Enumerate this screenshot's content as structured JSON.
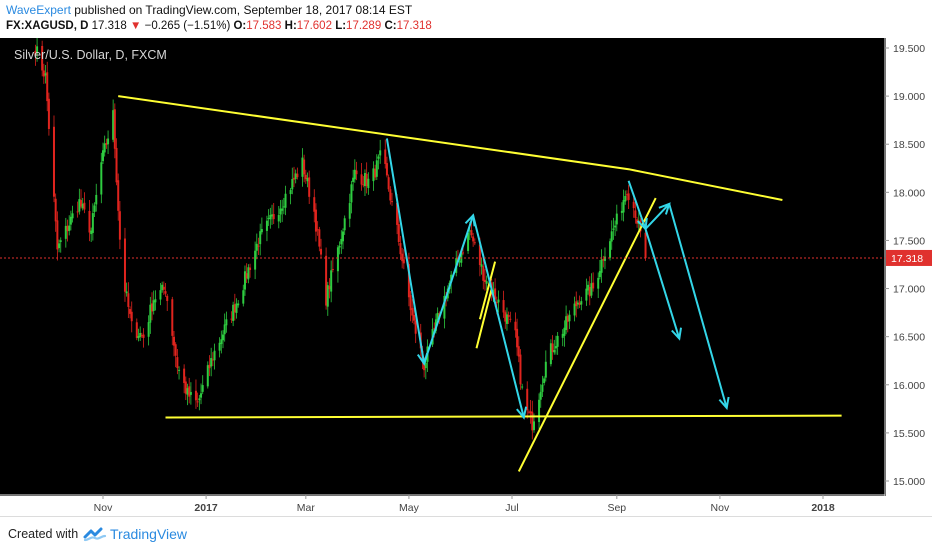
{
  "header": {
    "author": "WaveExpert",
    "published": " published on TradingView.com, September 18, 2017 08:14 EST",
    "symbol": "FX:XAGUSD, D",
    "price": "17.318",
    "change_arrow": "▼",
    "change": "−0.265 (−1.51%)",
    "o_label": "O:",
    "o": "17.583",
    "h_label": "H:",
    "h": "17.602",
    "l_label": "L:",
    "l": "17.289",
    "c_label": "C:",
    "c": "17.318"
  },
  "footer": {
    "created_with": "Created with",
    "brand": "TradingView"
  },
  "chart_data": {
    "type": "candlestick",
    "title": "Silver/U.S. Dollar, D, FXCM",
    "x_tick_labels": [
      "Nov",
      "2017",
      "Mar",
      "May",
      "Jul",
      "Sep",
      "Nov",
      "2018"
    ],
    "y_tick_labels": [
      "15.000",
      "15.500",
      "16.000",
      "16.500",
      "17.000",
      "17.500",
      "18.000",
      "18.500",
      "19.000",
      "19.500"
    ],
    "ylim": [
      14.85,
      19.6
    ],
    "last_price": 17.318,
    "last_price_label": "17.318",
    "colors": {
      "up": "#2ecc40",
      "down": "#e0241e",
      "trendline": "#ffff33",
      "projection": "#33d6e8",
      "last_price": "#e0312e",
      "background": "#000000"
    },
    "price_path": [
      [
        "2016-09-22",
        19.5
      ],
      [
        "2016-09-28",
        19.2
      ],
      [
        "2016-10-05",
        17.4
      ],
      [
        "2016-10-10",
        17.6
      ],
      [
        "2016-10-18",
        17.9
      ],
      [
        "2016-10-25",
        17.6
      ],
      [
        "2016-10-31",
        18.3
      ],
      [
        "2016-11-07",
        18.8
      ],
      [
        "2016-11-12",
        17.2
      ],
      [
        "2016-11-18",
        16.6
      ],
      [
        "2016-11-25",
        16.5
      ],
      [
        "2016-12-01",
        16.9
      ],
      [
        "2016-12-08",
        17.0
      ],
      [
        "2016-12-15",
        16.2
      ],
      [
        "2016-12-21",
        15.9
      ],
      [
        "2016-12-27",
        15.8
      ],
      [
        "2017-01-05",
        16.3
      ],
      [
        "2017-01-20",
        16.9
      ],
      [
        "2017-02-01",
        17.5
      ],
      [
        "2017-02-15",
        17.9
      ],
      [
        "2017-02-27",
        18.3
      ],
      [
        "2017-03-06",
        17.8
      ],
      [
        "2017-03-13",
        16.9
      ],
      [
        "2017-03-20",
        17.4
      ],
      [
        "2017-03-30",
        18.2
      ],
      [
        "2017-04-08",
        18.1
      ],
      [
        "2017-04-15",
        18.4
      ],
      [
        "2017-04-24",
        17.6
      ],
      [
        "2017-05-03",
        16.7
      ],
      [
        "2017-05-10",
        16.2
      ],
      [
        "2017-05-20",
        16.8
      ],
      [
        "2017-05-28",
        17.2
      ],
      [
        "2017-06-06",
        17.6
      ],
      [
        "2017-06-15",
        17.1
      ],
      [
        "2017-06-25",
        16.8
      ],
      [
        "2017-07-03",
        16.5
      ],
      [
        "2017-07-08",
        15.8
      ],
      [
        "2017-07-13",
        15.6
      ],
      [
        "2017-07-22",
        16.3
      ],
      [
        "2017-08-01",
        16.6
      ],
      [
        "2017-08-10",
        16.9
      ],
      [
        "2017-08-18",
        17.0
      ],
      [
        "2017-08-25",
        17.4
      ],
      [
        "2017-09-01",
        17.7
      ],
      [
        "2017-09-07",
        18.05
      ],
      [
        "2017-09-12",
        17.8
      ],
      [
        "2017-09-18",
        17.3
      ]
    ],
    "trendlines": [
      {
        "points": [
          [
            "2016-11-10",
            19.0
          ],
          [
            "2017-04-18",
            18.6
          ],
          [
            "2017-09-08",
            18.24
          ],
          [
            "2017-12-08",
            17.92
          ]
        ]
      },
      {
        "points": [
          [
            "2016-12-08",
            15.66
          ],
          [
            "2018-01-12",
            15.68
          ]
        ]
      },
      {
        "points": [
          [
            "2017-07-05",
            15.1
          ],
          [
            "2017-09-24",
            17.94
          ]
        ]
      },
      {
        "points": [
          [
            "2017-06-10",
            16.38
          ],
          [
            "2017-06-19",
            17.0
          ]
        ]
      },
      {
        "points": [
          [
            "2017-06-12",
            16.68
          ],
          [
            "2017-06-21",
            17.28
          ]
        ]
      }
    ],
    "projections": [
      {
        "points": [
          [
            "2017-04-18",
            18.56
          ],
          [
            "2017-05-10",
            16.22
          ],
          [
            "2017-06-08",
            17.76
          ],
          [
            "2017-07-08",
            15.66
          ]
        ]
      },
      {
        "points": [
          [
            "2017-09-08",
            18.12
          ],
          [
            "2017-09-18",
            17.62
          ],
          [
            "2017-10-08",
            16.48
          ]
        ]
      },
      {
        "points": [
          [
            "2017-09-18",
            17.62
          ],
          [
            "2017-10-02",
            17.88
          ],
          [
            "2017-11-05",
            15.76
          ]
        ]
      }
    ]
  }
}
